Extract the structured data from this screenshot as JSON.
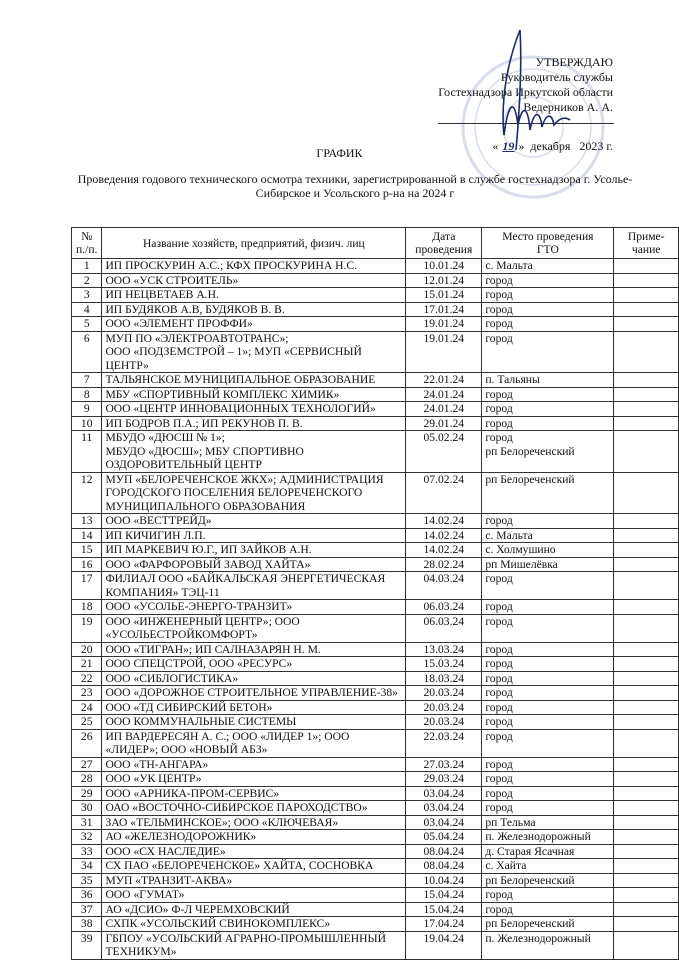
{
  "approval": {
    "heading": "УТВЕРЖДАЮ",
    "position": "Руководитель службы",
    "org": "Гостехнадзора Иркутской области",
    "person": "Ведерников А. А.",
    "date_open": "«",
    "date_day": "19",
    "date_close": "»",
    "date_rest": "декабря   2023 г.",
    "stamp_color": "#8fa0c8",
    "signature_color": "#1d2a6b"
  },
  "title": "ГРАФИК",
  "subtitle": "Проведения годового технического осмотра техники, зарегистрированной в службе гостехнадзора г. Усолье-Сибирское и Усольского р-на на 2024 г",
  "table": {
    "headers": [
      "№ п./п.",
      "Название хозяйств, предприятий, физич. лиц",
      "Дата проведения",
      "Место проведения ГТО",
      "Приме-чание"
    ],
    "rows": [
      {
        "n": "1",
        "name": "ИП ПРОСКУРИН А.С.; КФХ ПРОСКУРИНА Н.С.",
        "date": "10.01.24",
        "place": "с. Мальта",
        "note": ""
      },
      {
        "n": "2",
        "name": "ООО «УСК СТРОИТЕЛЬ»",
        "date": "12.01.24",
        "place": "город",
        "note": ""
      },
      {
        "n": "3",
        "name": "ИП НЕЦВЕТАЕВ А.Н.",
        "date": "15.01.24",
        "place": "город",
        "note": ""
      },
      {
        "n": "4",
        "name": "ИП БУДЯКОВ А.В, БУДЯКОВ В. В.",
        "date": "17.01.24",
        "place": "город",
        "note": ""
      },
      {
        "n": "5",
        "name": "ООО «ЭЛЕМЕНТ ПРОФФИ»",
        "date": "19.01.24",
        "place": "город",
        "note": ""
      },
      {
        "n": "6",
        "name": "МУП ПО «ЭЛЕКТРОАВТОТРАНС»;\n ООО «ПОДЗЕМСТРОЙ – 1»; МУП «СЕРВИСНЫЙ ЦЕНТР»",
        "date": "19.01.24",
        "place": "город",
        "note": ""
      },
      {
        "n": "7",
        "name": "ТАЛЬЯНСКОЕ МУНИЦИПАЛЬНОЕ ОБРАЗОВАНИЕ",
        "date": "22.01.24",
        "place": "п. Тальяны",
        "note": ""
      },
      {
        "n": "8",
        "name": "МБУ «СПОРТИВНЫЙ КОМПЛЕКС ХИМИК»",
        "date": "24.01.24",
        "place": "город",
        "note": ""
      },
      {
        "n": "9",
        "name": "ООО «ЦЕНТР ИННОВАЦИОННЫХ ТЕХНОЛОГИЙ»",
        "date": "24.01.24",
        "place": "город",
        "note": ""
      },
      {
        "n": "10",
        "name": "ИП БОДРОВ П.А.; ИП РЕКУНОВ П. В.",
        "date": "29.01.24",
        "place": "город",
        "note": ""
      },
      {
        "n": "11",
        "name": "МБУДО «ДЮСШ № 1»;\nМБУДО «ДЮСШ»; МБУ СПОРТИВНО ОЗДОРОВИТЕЛЬНЫЙ ЦЕНТР",
        "date": "05.02.24",
        "place": "город\nрп Белореченский",
        "note": ""
      },
      {
        "n": "12",
        "name": "МУП «БЕЛОРЕЧЕНСКОЕ ЖКХ»; АДМИНИСТРАЦИЯ ГОРОДСКОГО ПОСЕЛЕНИЯ БЕЛОРЕЧЕНСКОГО МУНИЦИПАЛЬНОГО ОБРАЗОВАНИЯ",
        "date": "07.02.24",
        "place": "рп Белореченский",
        "note": ""
      },
      {
        "n": "13",
        "name": "ООО «ВЕСТТРЕЙД»",
        "date": "14.02.24",
        "place": "город",
        "note": ""
      },
      {
        "n": "14",
        "name": " ИП КИЧИГИН Л.П.",
        "date": "14.02.24",
        "place": "с. Мальта",
        "note": ""
      },
      {
        "n": "15",
        "name": " ИП МАРКЕВИЧ Ю.Г., ИП ЗАЙКОВ А.Н.",
        "date": "14.02.24",
        "place": "с. Холмушино",
        "note": ""
      },
      {
        "n": "16",
        "name": "ООО «ФАРФОРОВЫЙ ЗАВОД ХАЙТА»",
        "date": "28.02.24",
        "place": "рп Мишелёвка",
        "note": ""
      },
      {
        "n": "17",
        "name": "ФИЛИАЛ ООО «БАЙКАЛЬСКАЯ ЭНЕРГЕТИЧЕСКАЯ КОМПАНИЯ» ТЭЦ-11",
        "date": "04.03.24",
        "place": "город",
        "note": ""
      },
      {
        "n": "18",
        "name": "ООО «УСОЛЬЕ-ЭНЕРГО-ТРАНЗИТ»",
        "date": "06.03.24",
        "place": "город",
        "note": ""
      },
      {
        "n": "19",
        "name": "ООО «ИНЖЕНЕРНЫЙ ЦЕНТР»; ООО «УСОЛЬЕСТРОЙКОМФОРТ»",
        "date": "06.03.24",
        "place": "город",
        "note": ""
      },
      {
        "n": "20",
        "name": "ООО «ТИГРАН»; ИП САЛНАЗАРЯН Н. М.",
        "date": "13.03.24",
        "place": "город",
        "note": ""
      },
      {
        "n": "21",
        "name": "ООО СПЕЦСТРОЙ, ООО «РЕСУРС»",
        "date": "15.03.24",
        "place": "город",
        "note": ""
      },
      {
        "n": "22",
        "name": "ООО «СИБЛОГИСТИКА»",
        "date": "18.03.24",
        "place": "город",
        "note": ""
      },
      {
        "n": "23",
        "name": "ООО «ДОРОЖНОЕ СТРОИТЕЛЬНОЕ УПРАВЛЕНИЕ-38»",
        "date": "20.03.24",
        "place": "город",
        "note": ""
      },
      {
        "n": "24",
        "name": "ООО «ТД СИБИРСКИЙ БЕТОН»",
        "date": "20.03.24",
        "place": "город",
        "note": ""
      },
      {
        "n": "25",
        "name": "ООО КОММУНАЛЬНЫЕ СИСТЕМЫ",
        "date": "20.03.24",
        "place": "город",
        "note": ""
      },
      {
        "n": "26",
        "name": "ИП ВАРДЕРЕСЯН А. С.; ООО «ЛИДЕР 1»; ООО «ЛИДЕР»; ООО «НОВЫЙ АБЗ»",
        "date": "22.03.24",
        "place": "город",
        "note": ""
      },
      {
        "n": "27",
        "name": "ООО «ТН-АНГАРА»",
        "date": "27.03.24",
        "place": "город",
        "note": ""
      },
      {
        "n": "28",
        "name": "ООО «УК ЦЕНТР»",
        "date": "29.03.24",
        "place": "город",
        "note": ""
      },
      {
        "n": "29",
        "name": "ООО «АРНИКА-ПРОМ-СЕРВИС»",
        "date": "03.04.24",
        "place": "город",
        "note": ""
      },
      {
        "n": "30",
        "name": "ОАО «ВОСТОЧНО-СИБИРСКОЕ ПАРОХОДСТВО»",
        "date": "03.04.24",
        "place": "город",
        "note": ""
      },
      {
        "n": "31",
        "name": "ЗАО «ТЕЛЬМИНСКОЕ»; ООО «КЛЮЧЕВАЯ»",
        "date": "03.04.24",
        "place": "рп Тельма",
        "note": ""
      },
      {
        "n": "32",
        "name": "АО «ЖЕЛЕЗНОДОРОЖНИК»",
        "date": "05.04.24",
        "place": "п. Железнодорожный",
        "note": ""
      },
      {
        "n": "33",
        "name": "ООО «СХ НАСЛЕДИЕ»",
        "date": "08.04.24",
        "place": "д. Старая Ясачная",
        "note": ""
      },
      {
        "n": "34",
        "name": " СХ ПАО «БЕЛОРЕЧЕНСКОЕ» ХАЙТА, СОСНОВКА",
        "date": "08.04.24",
        "place": "с. Хайта",
        "note": ""
      },
      {
        "n": "35",
        "name": "МУП «ТРАНЗИТ-АКВА»",
        "date": "10.04.24",
        "place": "рп Белореченский",
        "note": ""
      },
      {
        "n": "36",
        "name": "ООО «ГУМАТ»",
        "date": "15.04.24",
        "place": "город",
        "note": ""
      },
      {
        "n": "37",
        "name": "АО «ДСИО» Ф-Л ЧЕРЕМХОВСКИЙ",
        "date": "15.04.24",
        "place": "город",
        "note": ""
      },
      {
        "n": "38",
        "name": "СХПК «УСОЛЬСКИЙ СВИНОКОМПЛЕКС»",
        "date": "17.04.24",
        "place": "рп Белореченский",
        "note": ""
      },
      {
        "n": "39",
        "name": "ГБПОУ «УСОЛЬСКИЙ АГРАРНО-ПРОМЫШЛЕННЫЙ ТЕХНИКУМ»",
        "date": "19.04.24",
        "place": "п. Железнодорожный",
        "note": ""
      }
    ]
  }
}
